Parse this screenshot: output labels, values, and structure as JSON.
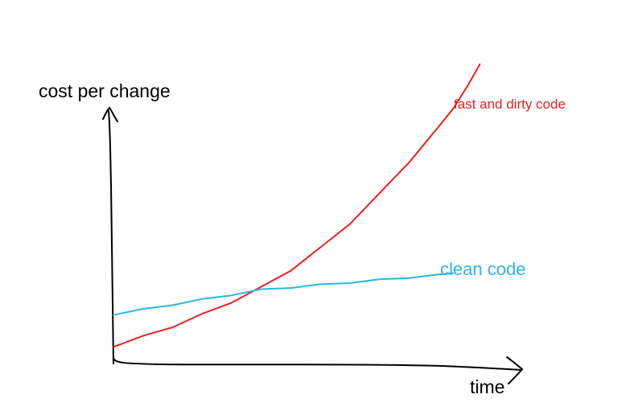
{
  "chart_data": {
    "type": "line",
    "ylabel": "cost per change",
    "xlabel": "time",
    "series": [
      {
        "name": "fast and dirty code",
        "color": "#e8201f",
        "points": [
          [
            0.0,
            0.07
          ],
          [
            0.1,
            0.11
          ],
          [
            0.2,
            0.15
          ],
          [
            0.3,
            0.2
          ],
          [
            0.4,
            0.25
          ],
          [
            0.5,
            0.31
          ],
          [
            0.6,
            0.38
          ],
          [
            0.7,
            0.47
          ],
          [
            0.8,
            0.57
          ],
          [
            0.9,
            0.69
          ],
          [
            1.0,
            0.82
          ],
          [
            1.1,
            0.96
          ],
          [
            1.15,
            1.04
          ],
          [
            1.2,
            1.13
          ],
          [
            1.24,
            1.22
          ]
        ]
      },
      {
        "name": "clean code",
        "color": "#29b6e8",
        "points": [
          [
            0.0,
            0.2
          ],
          [
            0.1,
            0.22
          ],
          [
            0.2,
            0.24
          ],
          [
            0.3,
            0.26
          ],
          [
            0.4,
            0.28
          ],
          [
            0.5,
            0.3
          ],
          [
            0.6,
            0.31
          ],
          [
            0.7,
            0.32
          ],
          [
            0.8,
            0.33
          ],
          [
            0.9,
            0.34
          ],
          [
            1.0,
            0.35
          ],
          [
            1.1,
            0.36
          ],
          [
            1.15,
            0.37
          ]
        ]
      }
    ],
    "xlim": [
      0,
      1.25
    ],
    "ylim": [
      0,
      1.25
    ],
    "grid": false,
    "legend": "inline labels at line ends"
  }
}
